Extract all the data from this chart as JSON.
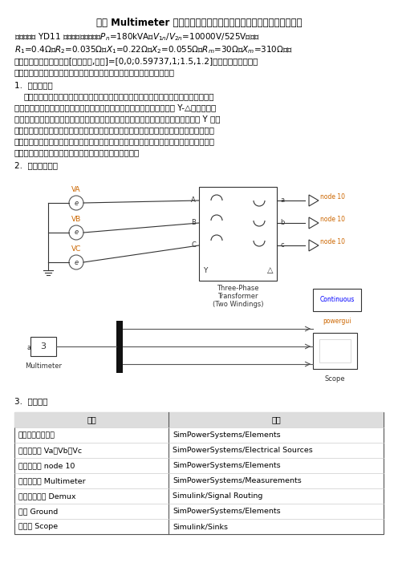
{
  "title": "运用 Multimeter 分析电压器的一次侧相电压、主磁通、空载电流波形",
  "req_line": "要求：一台 YD11 连接的三相变压器，$P_n$=180kVA，$V_{1n}$/$V_{2n}$=10000V/525V，已知",
  "formula_line": "$R_1$=0.4Ω，$R_2$=0.035Ω，$X_1$=0.22Ω，$X_2$=0.055Ω，$R_m$=30Ω，$X_m$=310Ω，铁",
  "para1": "芯饱和特性曲线的拐点为[磁化电流,磁通]=[0,0;0.59737,1;1.5,1.2]，分析电压器的一次",
  "para1b": "侧相电压、主磁通、空载电流波形。改变变压器的接线方式，分析结果。",
  "section1": "1.  理论分析。",
  "indent_para": "    空载时，由于变压器铁芯饱和，因此当相电压和主磁通是正弦时空载电流为尖顶波，其",
  "para2": "中将含有较大的三次谐波和一系列高次谐波。但是，因为三相变压器采用 Y-△连接，一次",
  "para3": "侧空载电流中三次谐波无法通过，又因为五次以上的谐波电流很小可忽略不计，所以 Y 侧电",
  "para4": "流近似正弦波。由一次侧空载电流产生的主磁通波形为平顶波，其中含有的三次谐波磁通分",
  "para5": "量在二次绕组的闭合三角形中产生三次谐波环流，此环流将削弱主磁通中的三次谐波分量，",
  "para6": "因此空载电流、主磁通及其感应的电动势均接近于正弦。",
  "section2": "2.  仿真电路搭建",
  "section3": "3.  元件提取",
  "table_headers": [
    "元件",
    "路径"
  ],
  "table_rows": [
    [
      "三相双绕组变压器",
      "SimPowerSystems/Elements"
    ],
    [
      "交流电压源 Va、Vb、Vc",
      "SimPowerSystems/Electrical Sources"
    ],
    [
      "中性点模块 node 10",
      "SimPowerSystems/Elements"
    ],
    [
      "外形表模块 Multimeter",
      "SimPowerSystems/Measurements"
    ],
    [
      "信号分离模块 Demux",
      "Simulink/Signal Routing"
    ],
    [
      "接地 Ground",
      "SimPowerSystems/Elements"
    ],
    [
      "示波器 Scope",
      "Simulink/Sinks"
    ]
  ],
  "bg_color": "#ffffff"
}
